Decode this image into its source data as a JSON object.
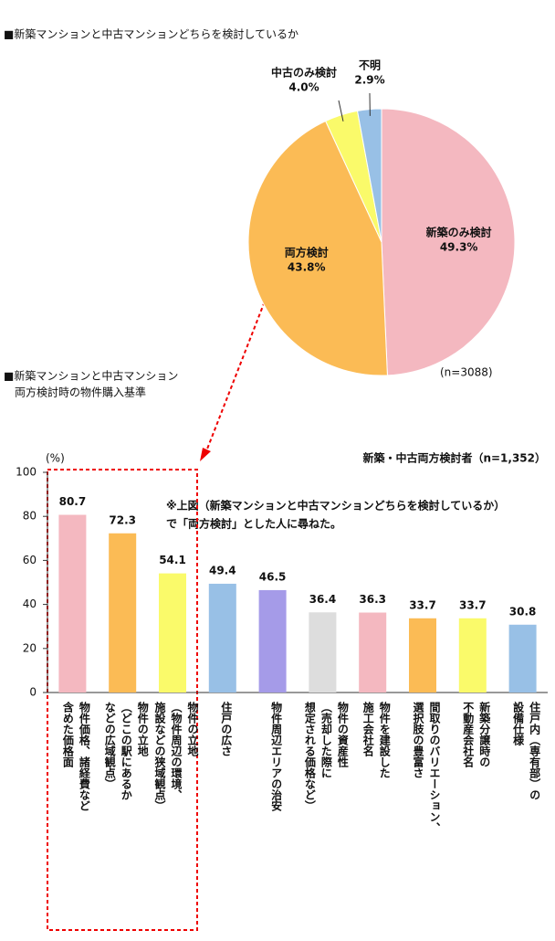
{
  "chart_data": [
    {
      "type": "pie",
      "title": "■新築マンションと中古マンションどちらを検討しているか",
      "categories": [
        "新築のみ検討",
        "両方検討",
        "中古のみ検討",
        "不明"
      ],
      "values": [
        49.3,
        43.8,
        4.0,
        2.9
      ],
      "value_labels": [
        "49.3%",
        "43.8%",
        "4.0%",
        "2.9%"
      ],
      "colors": [
        "#f4b8c0",
        "#fbbb55",
        "#fafa6a",
        "#98c0e6"
      ],
      "note": "(n=3088)"
    },
    {
      "type": "bar",
      "title": [
        "■新築マンションと中古マンション",
        "両方検討時の物件購入基準"
      ],
      "ylabel": "(%)",
      "subtitle": "新築・中古両方検討者（n=1,352）",
      "annotation": [
        "※上図（新築マンションと中古マンションどちらを検討しているか）",
        "で「両方検討」とした人に尋ねた。"
      ],
      "categories": [
        [
          "物件価格、諸経費など",
          "含めた価格面"
        ],
        [
          "物件の立地",
          "（どこの駅にあるか",
          "などの広域観点）"
        ],
        [
          "物件の立地",
          "（物件周辺の環境、",
          "施設などの狭域観点）"
        ],
        [
          "住戸の広さ"
        ],
        [
          "物件周辺エリアの治安"
        ],
        [
          "物件の資産性",
          "（売却した際に",
          "想定される価格など）"
        ],
        [
          "物件を建設した",
          "施工会社名"
        ],
        [
          "間取りのバリエーション、",
          "選択肢の豊富さ"
        ],
        [
          "新築分譲時の",
          "不動産会社名"
        ],
        [
          "住戸内（専有部）の",
          "設備仕様"
        ]
      ],
      "values": [
        80.7,
        72.3,
        54.1,
        49.4,
        46.5,
        36.4,
        36.3,
        33.7,
        33.7,
        30.8
      ],
      "colors": [
        "#f4b8c0",
        "#fbbb55",
        "#fafa6a",
        "#98c0e6",
        "#a59be8",
        "#dddddd",
        "#f4b8c0",
        "#fbbb55",
        "#fafa6a",
        "#98c0e6"
      ],
      "ylim": [
        0,
        100
      ],
      "yticks": [
        0,
        20,
        40,
        60,
        80,
        100
      ]
    }
  ]
}
